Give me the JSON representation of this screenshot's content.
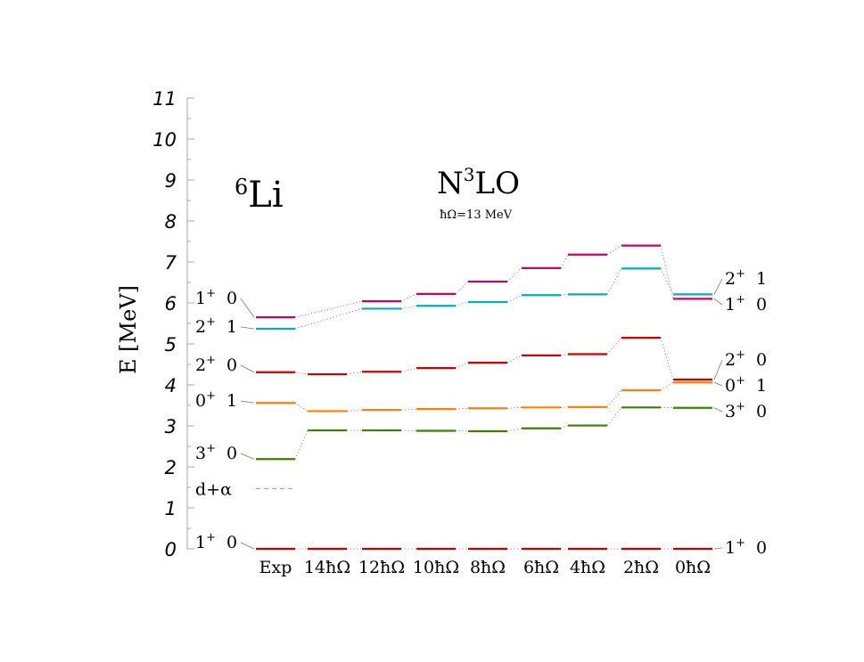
{
  "chart_data": {
    "type": "level-scheme",
    "nucleus": {
      "mass": "6",
      "symbol": "Li"
    },
    "interaction": {
      "base": "N",
      "exp": "3",
      "rest": "LO"
    },
    "hbar_omega_label": "ħΩ=13 MeV",
    "ylabel": "E [MeV]",
    "ylim": [
      0,
      11
    ],
    "yticks": [
      0,
      1,
      2,
      3,
      4,
      5,
      6,
      7,
      8,
      9,
      10,
      11
    ],
    "columns": [
      "Exp",
      "14ħΩ",
      "12ħΩ",
      "10ħΩ",
      "8ħΩ",
      "6ħΩ",
      "4ħΩ",
      "2ħΩ",
      "0ħΩ"
    ],
    "threshold": {
      "label": "d+α",
      "energy": 1.47
    },
    "states": [
      {
        "j": "1",
        "parity": "+",
        "t": "0",
        "color": "#cc0000",
        "energies": [
          0.0,
          0.0,
          0.0,
          0.0,
          0.0,
          0.0,
          0.0,
          0.0,
          0.0
        ]
      },
      {
        "j": "3",
        "parity": "+",
        "t": "0",
        "color": "#3f7f00",
        "energies": [
          2.19,
          2.89,
          2.89,
          2.88,
          2.87,
          2.94,
          3.01,
          3.45,
          3.44
        ]
      },
      {
        "j": "0",
        "parity": "+",
        "t": "1",
        "color": "#ff8000",
        "energies": [
          3.56,
          3.36,
          3.39,
          3.41,
          3.43,
          3.45,
          3.46,
          3.87,
          4.06
        ]
      },
      {
        "j": "2",
        "parity": "+",
        "t": "0",
        "color": "#cc0000",
        "energies": [
          4.31,
          4.26,
          4.32,
          4.41,
          4.54,
          4.72,
          4.75,
          5.15,
          4.13
        ]
      },
      {
        "j": "2",
        "parity": "+",
        "t": "1",
        "color": "#00b0b8",
        "energies": [
          5.37,
          null,
          5.86,
          5.93,
          6.02,
          6.19,
          6.21,
          6.84,
          6.21
        ]
      },
      {
        "j": "1",
        "parity": "+",
        "t": "0",
        "color": "#cc0066",
        "energies": [
          5.65,
          null,
          6.04,
          6.22,
          6.52,
          6.85,
          7.18,
          7.4,
          6.1
        ]
      }
    ],
    "left_labels": [
      {
        "j": "1",
        "parity": "+",
        "t": "0",
        "energy": 0.0
      },
      {
        "j": "3",
        "parity": "+",
        "t": "0",
        "energy": 2.19
      },
      {
        "j": "0",
        "parity": "+",
        "t": "1",
        "energy": 3.56
      },
      {
        "j": "2",
        "parity": "+",
        "t": "0",
        "energy": 4.31
      },
      {
        "j": "2",
        "parity": "+",
        "t": "1",
        "energy": 5.37
      },
      {
        "j": "1",
        "parity": "+",
        "t": "0",
        "energy": 5.65
      }
    ],
    "right_labels": [
      {
        "j": "2",
        "parity": "+",
        "t": "1",
        "energy": 6.21
      },
      {
        "j": "1",
        "parity": "+",
        "t": "0",
        "energy": 6.1
      },
      {
        "j": "2",
        "parity": "+",
        "t": "0",
        "energy": 4.13
      },
      {
        "j": "0",
        "parity": "+",
        "t": "1",
        "energy": 4.06
      },
      {
        "j": "3",
        "parity": "+",
        "t": "0",
        "energy": 3.44
      },
      {
        "j": "1",
        "parity": "+",
        "t": "0",
        "energy": 0.0
      }
    ]
  }
}
